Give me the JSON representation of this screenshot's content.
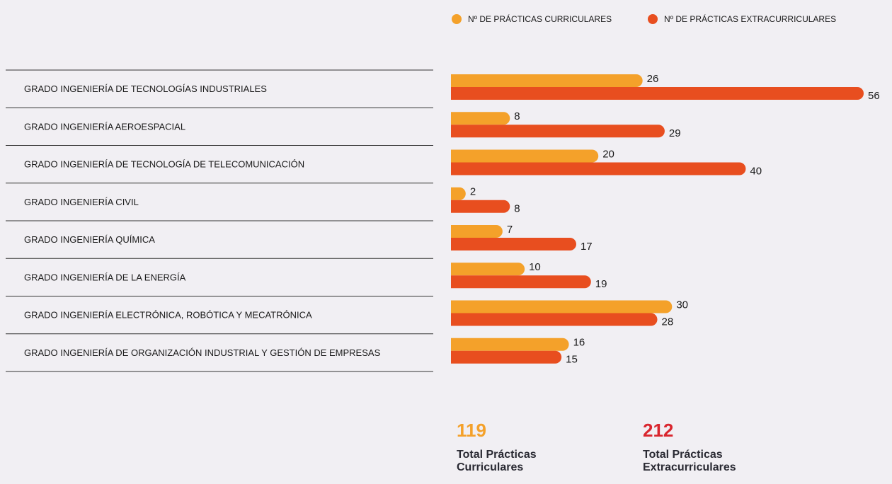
{
  "chart_data": {
    "type": "bar",
    "orientation": "horizontal",
    "legend": "top",
    "categories": [
      "GRADO INGENIERÍA DE TECNOLOGÍAS INDUSTRIALES",
      "GRADO INGENIERÍA AEROESPACIAL",
      "GRADO INGENIERÍA DE TECNOLOGÍA DE TELECOMUNICACIÓN",
      "GRADO INGENIERÍA CIVIL",
      "GRADO INGENIERÍA QUÍMICA",
      "GRADO INGENIERÍA DE LA ENERGÍA",
      "GRADO INGENIERÍA ELECTRÓNICA, ROBÓTICA Y MECATRÓNICA",
      "GRADO INGENIERÍA DE ORGANIZACIÓN INDUSTRIAL Y GESTIÓN DE EMPRESAS"
    ],
    "series": [
      {
        "name": "Nº DE PRÁCTICAS CURRICULARES",
        "color": "#f4a12a",
        "values": [
          26,
          8,
          20,
          2,
          7,
          10,
          30,
          16
        ]
      },
      {
        "name": "Nº DE PRÁCTICAS EXTRACURRICULARES",
        "color": "#e84e1f",
        "values": [
          56,
          29,
          40,
          8,
          17,
          19,
          28,
          15
        ]
      }
    ],
    "xlim": [
      0,
      56
    ],
    "totals": [
      {
        "value": 119,
        "label": "Total Prácticas Curriculares",
        "color": "#f4a12a"
      },
      {
        "value": 212,
        "label": "Total Prácticas Extracurriculares",
        "color": "#d9262e"
      }
    ]
  }
}
